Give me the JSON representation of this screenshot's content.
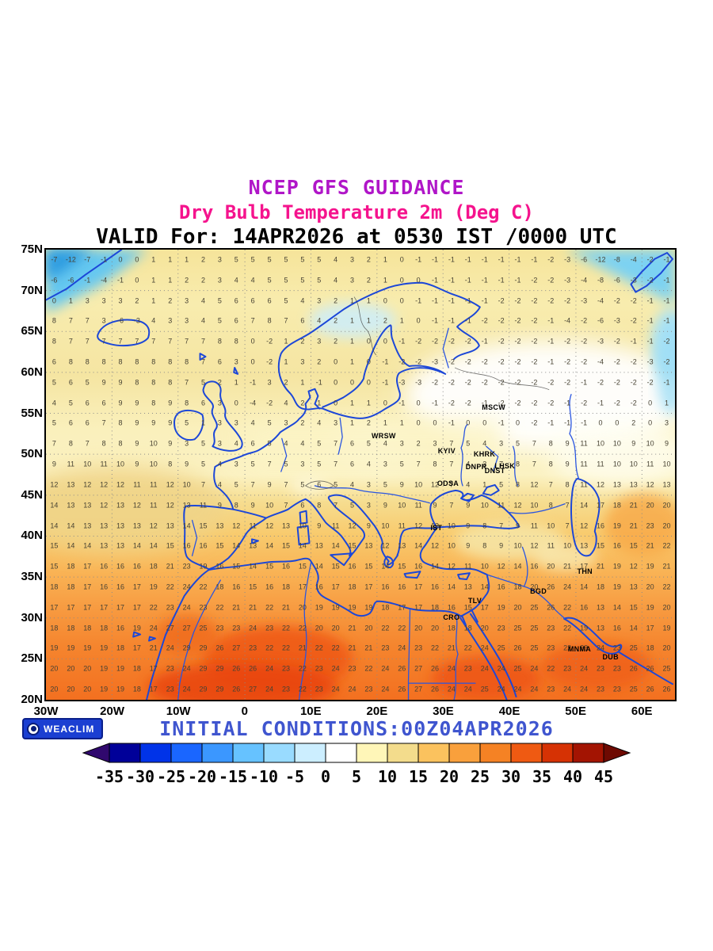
{
  "titles": {
    "line1": "NCEP GFS GUIDANCE",
    "line2": "Dry Bulb Temperature 2m (Deg C)",
    "line3": "VALID For: 14APR2026 at 0530 IST /0000 UTC"
  },
  "footer": {
    "initial_conditions": "INITIAL CONDITIONS:00Z04APR2026",
    "logo_label": "WEACLIM"
  },
  "axes": {
    "lat_labels": [
      "75N",
      "70N",
      "65N",
      "60N",
      "55N",
      "50N",
      "45N",
      "40N",
      "35N",
      "30N",
      "25N",
      "20N"
    ],
    "lat_values": [
      75,
      70,
      65,
      60,
      55,
      50,
      45,
      40,
      35,
      30,
      25,
      20
    ],
    "lon_labels": [
      "30W",
      "20W",
      "10W",
      "0",
      "10E",
      "20E",
      "30E",
      "40E",
      "50E",
      "60E"
    ],
    "lon_values": [
      -30,
      -20,
      -10,
      0,
      10,
      20,
      30,
      40,
      50,
      60
    ]
  },
  "colorbar": {
    "ticks": [
      "-35",
      "-30",
      "-25",
      "-20",
      "-15",
      "-10",
      "-5",
      "0",
      "5",
      "10",
      "15",
      "20",
      "25",
      "30",
      "35",
      "40",
      "45"
    ],
    "segment_colors": [
      "#000099",
      "#0033e8",
      "#1a66ff",
      "#3b97ff",
      "#66c2ff",
      "#99dbff",
      "#cceeff",
      "#ffffff",
      "#fff6b8",
      "#f3dc8c",
      "#fbc25e",
      "#f9a03c",
      "#f58224",
      "#ef5a12",
      "#d63204",
      "#a31402"
    ],
    "arrow_left_color": "#30086e",
    "arrow_right_color": "#6e0a02"
  },
  "cities": [
    {
      "name": "MSCW",
      "lat": 55.75,
      "lon": 37.62
    },
    {
      "name": "WRSW",
      "lat": 52.23,
      "lon": 21.01
    },
    {
      "name": "KYIV",
      "lat": 50.45,
      "lon": 30.52
    },
    {
      "name": "KHRK",
      "lat": 49.99,
      "lon": 36.23
    },
    {
      "name": "LHSK",
      "lat": 48.57,
      "lon": 39.3
    },
    {
      "name": "DNST",
      "lat": 48.0,
      "lon": 37.8
    },
    {
      "name": "DNPR",
      "lat": 48.45,
      "lon": 34.98
    },
    {
      "name": "ODSA",
      "lat": 46.48,
      "lon": 30.72
    },
    {
      "name": "IST",
      "lat": 41.0,
      "lon": 28.97
    },
    {
      "name": "THN",
      "lat": 35.69,
      "lon": 51.39
    },
    {
      "name": "BGD",
      "lat": 33.31,
      "lon": 44.37
    },
    {
      "name": "TLV",
      "lat": 32.07,
      "lon": 34.79
    },
    {
      "name": "CRO",
      "lat": 30.04,
      "lon": 31.24
    },
    {
      "name": "MNMA",
      "lat": 26.22,
      "lon": 50.58
    },
    {
      "name": "DUB",
      "lat": 25.2,
      "lon": 55.27
    }
  ],
  "chart_data": {
    "type": "heatmap",
    "title": "NCEP GFS GUIDANCE - Dry Bulb Temperature 2m (Deg C)",
    "units": "Deg C",
    "lat_range": [
      20,
      75
    ],
    "lon_range": [
      -30,
      65
    ],
    "colorbar_range": [
      -35,
      45
    ],
    "grid_lats": [
      73.75,
      71.25,
      68.75,
      66.25,
      63.75,
      61.25,
      58.75,
      56.25,
      53.75,
      51.25,
      48.75,
      46.25,
      43.75,
      41.25,
      38.75,
      36.25,
      33.75,
      31.25,
      28.75,
      26.25,
      23.75,
      21.25
    ],
    "grid_lons": [
      -28.75,
      -26.25,
      -23.75,
      -21.25,
      -18.75,
      -16.25,
      -13.75,
      -11.25,
      -8.75,
      -6.25,
      -3.75,
      -1.25,
      1.25,
      3.75,
      6.25,
      8.75,
      11.25,
      13.75,
      16.25,
      18.75,
      21.25,
      23.75,
      26.25,
      28.75,
      31.25,
      33.75,
      36.25,
      38.75,
      41.25,
      43.75,
      46.25,
      48.75,
      51.25,
      53.75,
      56.25,
      58.75,
      61.25,
      63.75
    ],
    "values": [
      [
        -7,
        -12,
        -7,
        -1,
        0,
        0,
        1,
        1,
        1,
        2,
        3,
        5,
        5,
        5,
        5,
        5,
        5,
        4,
        3,
        2,
        1,
        0,
        -1,
        -1,
        -1,
        -1,
        -1,
        -1,
        -1,
        -1,
        -2,
        -3,
        -6,
        -12,
        -8,
        -4,
        -2,
        -1
      ],
      [
        -6,
        -6,
        -1,
        -4,
        -1,
        0,
        1,
        1,
        2,
        2,
        3,
        4,
        4,
        5,
        5,
        5,
        5,
        4,
        3,
        2,
        1,
        0,
        0,
        -1,
        -1,
        -1,
        -1,
        -1,
        -1,
        -2,
        -2,
        -3,
        -4,
        -8,
        -6,
        -3,
        -2,
        -1
      ],
      [
        0,
        1,
        3,
        3,
        3,
        2,
        1,
        2,
        3,
        4,
        5,
        6,
        6,
        6,
        5,
        4,
        3,
        2,
        1,
        1,
        0,
        0,
        -1,
        -1,
        -1,
        -1,
        -1,
        -2,
        -2,
        -2,
        -2,
        -2,
        -3,
        -4,
        -2,
        -2,
        -1,
        -1
      ],
      [
        8,
        7,
        7,
        3,
        -6,
        -3,
        4,
        3,
        3,
        4,
        5,
        6,
        7,
        8,
        7,
        6,
        4,
        2,
        1,
        1,
        2,
        1,
        0,
        -1,
        -1,
        -1,
        -2,
        -2,
        -2,
        -2,
        -1,
        -4,
        -2,
        -6,
        -3,
        -2,
        -1,
        -1
      ],
      [
        8,
        7,
        7,
        7,
        7,
        7,
        7,
        7,
        7,
        7,
        8,
        8,
        0,
        -2,
        1,
        2,
        3,
        2,
        1,
        0,
        0,
        -1,
        -2,
        -2,
        -2,
        -2,
        -1,
        -2,
        -2,
        -2,
        -1,
        -2,
        -2,
        -3,
        -2,
        -1,
        -1,
        -2
      ],
      [
        6,
        8,
        8,
        8,
        8,
        8,
        8,
        8,
        8,
        7,
        6,
        3,
        0,
        -2,
        1,
        3,
        2,
        0,
        1,
        0,
        -1,
        -2,
        -2,
        -3,
        -2,
        -2,
        -2,
        -2,
        -2,
        -2,
        -1,
        -2,
        -2,
        -4,
        -2,
        -2,
        -3,
        -2
      ],
      [
        5,
        6,
        5,
        9,
        9,
        8,
        8,
        8,
        7,
        5,
        2,
        1,
        -1,
        3,
        2,
        1,
        -1,
        0,
        0,
        0,
        -1,
        -3,
        -3,
        -2,
        -2,
        -2,
        -2,
        -2,
        -2,
        -2,
        -2,
        -2,
        -1,
        -2,
        -2,
        -2,
        -2,
        -1
      ],
      [
        4,
        5,
        6,
        6,
        9,
        9,
        8,
        9,
        8,
        6,
        3,
        0,
        -4,
        -2,
        4,
        2,
        1,
        0,
        1,
        1,
        0,
        -1,
        0,
        -1,
        -2,
        -2,
        -1,
        -2,
        -2,
        -2,
        -2,
        -1,
        -2,
        -1,
        -2,
        -2,
        0,
        1
      ],
      [
        5,
        6,
        6,
        7,
        8,
        9,
        9,
        9,
        5,
        1,
        3,
        3,
        4,
        5,
        3,
        2,
        4,
        3,
        1,
        2,
        1,
        1,
        0,
        0,
        -1,
        0,
        0,
        -1,
        0,
        -2,
        -1,
        -1,
        -1,
        0,
        0,
        2,
        0,
        3
      ],
      [
        7,
        8,
        7,
        8,
        8,
        9,
        10,
        9,
        3,
        5,
        3,
        4,
        6,
        5,
        4,
        4,
        5,
        7,
        6,
        5,
        4,
        3,
        2,
        3,
        7,
        5,
        4,
        3,
        5,
        7,
        8,
        9,
        11,
        10,
        10,
        9,
        10,
        9
      ],
      [
        9,
        11,
        10,
        11,
        10,
        9,
        10,
        8,
        9,
        5,
        4,
        3,
        5,
        7,
        5,
        3,
        5,
        7,
        6,
        4,
        3,
        5,
        7,
        8,
        7,
        4,
        3,
        7,
        8,
        7,
        8,
        9,
        11,
        11,
        10,
        10,
        11,
        10
      ],
      [
        12,
        13,
        12,
        12,
        12,
        11,
        11,
        12,
        10,
        7,
        4,
        5,
        7,
        9,
        7,
        5,
        6,
        5,
        4,
        3,
        5,
        9,
        10,
        12,
        7,
        4,
        1,
        5,
        8,
        12,
        7,
        8,
        11,
        12,
        13,
        13,
        12,
        13
      ],
      [
        14,
        13,
        13,
        12,
        13,
        12,
        11,
        12,
        13,
        11,
        9,
        8,
        9,
        10,
        7,
        6,
        8,
        7,
        5,
        3,
        9,
        10,
        11,
        9,
        7,
        9,
        10,
        11,
        12,
        10,
        8,
        7,
        14,
        17,
        18,
        21,
        20,
        20
      ],
      [
        14,
        14,
        13,
        13,
        13,
        13,
        12,
        13,
        14,
        15,
        13,
        12,
        11,
        12,
        13,
        10,
        9,
        11,
        12,
        9,
        10,
        11,
        12,
        13,
        10,
        9,
        8,
        7,
        9,
        11,
        10,
        7,
        12,
        16,
        19,
        21,
        23,
        20
      ],
      [
        15,
        14,
        14,
        13,
        13,
        14,
        14,
        15,
        16,
        16,
        15,
        14,
        13,
        14,
        15,
        14,
        13,
        14,
        15,
        13,
        12,
        13,
        14,
        12,
        10,
        9,
        8,
        9,
        10,
        12,
        11,
        10,
        13,
        15,
        16,
        15,
        21,
        22
      ],
      [
        15,
        18,
        17,
        16,
        16,
        16,
        18,
        21,
        23,
        19,
        16,
        15,
        14,
        15,
        16,
        15,
        14,
        15,
        16,
        15,
        14,
        15,
        16,
        14,
        12,
        11,
        10,
        12,
        14,
        16,
        20,
        21,
        17,
        21,
        19,
        12,
        19,
        21
      ],
      [
        18,
        18,
        17,
        16,
        16,
        17,
        19,
        22,
        24,
        22,
        18,
        16,
        15,
        16,
        18,
        17,
        16,
        17,
        18,
        17,
        16,
        16,
        17,
        16,
        14,
        13,
        14,
        16,
        18,
        20,
        26,
        24,
        14,
        18,
        19,
        13,
        20,
        22
      ],
      [
        17,
        17,
        17,
        17,
        17,
        17,
        22,
        23,
        24,
        23,
        22,
        21,
        21,
        22,
        21,
        20,
        19,
        19,
        19,
        19,
        18,
        17,
        17,
        18,
        16,
        15,
        17,
        19,
        20,
        25,
        26,
        22,
        16,
        13,
        14,
        15,
        19,
        20
      ],
      [
        18,
        18,
        18,
        18,
        16,
        19,
        24,
        27,
        27,
        25,
        23,
        23,
        24,
        23,
        22,
        22,
        20,
        20,
        21,
        20,
        22,
        22,
        20,
        20,
        18,
        18,
        20,
        23,
        25,
        25,
        23,
        22,
        19,
        13,
        16,
        14,
        17,
        19
      ],
      [
        19,
        19,
        19,
        19,
        18,
        17,
        21,
        24,
        29,
        29,
        26,
        27,
        23,
        22,
        22,
        21,
        22,
        22,
        21,
        21,
        23,
        24,
        23,
        22,
        21,
        22,
        24,
        25,
        26,
        25,
        23,
        22,
        23,
        24,
        23,
        25,
        18,
        20
      ],
      [
        20,
        20,
        20,
        19,
        19,
        18,
        17,
        23,
        24,
        29,
        29,
        26,
        26,
        24,
        23,
        22,
        23,
        24,
        23,
        22,
        24,
        26,
        27,
        26,
        24,
        23,
        24,
        24,
        25,
        24,
        22,
        23,
        24,
        23,
        23,
        26,
        26,
        25
      ],
      [
        20,
        20,
        20,
        19,
        19,
        18,
        17,
        23,
        24,
        29,
        29,
        26,
        27,
        24,
        23,
        22,
        23,
        24,
        24,
        23,
        24,
        26,
        27,
        26,
        24,
        24,
        25,
        24,
        24,
        24,
        23,
        24,
        24,
        23,
        23,
        25,
        26,
        26
      ]
    ]
  }
}
